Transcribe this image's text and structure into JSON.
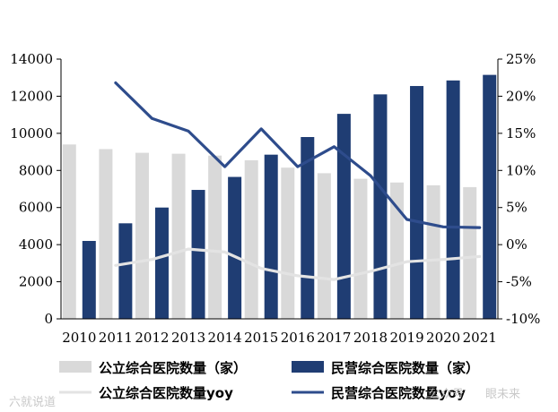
{
  "chart_data": {
    "type": "bar",
    "categories": [
      "2010",
      "2011",
      "2012",
      "2013",
      "2014",
      "2015",
      "2016",
      "2017",
      "2018",
      "2019",
      "2020",
      "2021"
    ],
    "series": [
      {
        "name": "公立综合医院数量（家）",
        "kind": "bar",
        "axis": "left",
        "color": "#d9d9d9",
        "values": [
          9400,
          9150,
          8950,
          8900,
          8800,
          8550,
          8150,
          7850,
          7550,
          7350,
          7200,
          7100
        ]
      },
      {
        "name": "民营综合医院数量（家）",
        "kind": "bar",
        "axis": "left",
        "color": "#1f3d73",
        "values": [
          4200,
          5150,
          6000,
          6950,
          7650,
          8850,
          9800,
          11050,
          12100,
          12550,
          12850,
          13150
        ]
      },
      {
        "name": "公立综合医院数量yoy",
        "kind": "line",
        "axis": "right",
        "color": "#e3e3e3",
        "values": [
          null,
          -2.8,
          -2.0,
          -0.6,
          -1.0,
          -3.2,
          -4.2,
          -4.7,
          -3.6,
          -2.3,
          -2.0,
          -1.6
        ]
      },
      {
        "name": "民营综合医院数量yoy",
        "kind": "line",
        "axis": "right",
        "color": "#2e4c8c",
        "values": [
          null,
          21.8,
          17.0,
          15.3,
          10.5,
          15.6,
          10.5,
          13.2,
          9.3,
          3.4,
          2.4,
          2.3
        ]
      }
    ],
    "left_axis": {
      "min": 0,
      "max": 14000,
      "step": 2000,
      "ticks": [
        "0",
        "2000",
        "4000",
        "6000",
        "8000",
        "10000",
        "12000",
        "14000"
      ]
    },
    "right_axis": {
      "min": -10,
      "max": 25,
      "step": 5,
      "ticks": [
        "-10%",
        "-5%",
        "0%",
        "5%",
        "10%",
        "15%",
        "20%",
        "25%"
      ]
    },
    "grid": false,
    "legend_position": "bottom"
  },
  "watermarks": {
    "left": "六就说道",
    "right_dot": "公众号",
    "right": "眼未来"
  }
}
